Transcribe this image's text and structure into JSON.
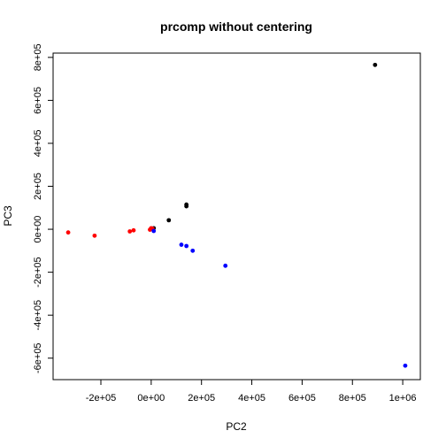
{
  "chart_data": {
    "type": "scatter",
    "title": "prcomp without centering",
    "xlabel": "PC2",
    "ylabel": "PC3",
    "xlim": [
      -390000,
      1070000
    ],
    "ylim": [
      -700000,
      820000
    ],
    "x_ticks": [
      {
        "value": -200000,
        "label": "-2e+05"
      },
      {
        "value": 0,
        "label": "0e+00"
      },
      {
        "value": 200000,
        "label": "2e+05"
      },
      {
        "value": 400000,
        "label": "4e+05"
      },
      {
        "value": 600000,
        "label": "6e+05"
      },
      {
        "value": 800000,
        "label": "8e+05"
      },
      {
        "value": 1000000,
        "label": "1e+06"
      }
    ],
    "y_ticks": [
      {
        "value": -600000,
        "label": "-6e+05"
      },
      {
        "value": -400000,
        "label": "-4e+05"
      },
      {
        "value": -200000,
        "label": "-2e+05"
      },
      {
        "value": 0,
        "label": "0e+00"
      },
      {
        "value": 200000,
        "label": "2e+05"
      },
      {
        "value": 400000,
        "label": "4e+05"
      },
      {
        "value": 600000,
        "label": "6e+05"
      },
      {
        "value": 800000,
        "label": "8e+05"
      }
    ],
    "grid": false,
    "series": [
      {
        "color": "#000000",
        "points": [
          {
            "x": 890000,
            "y": 765000
          },
          {
            "x": 140000,
            "y": 115000
          },
          {
            "x": 140000,
            "y": 107000
          },
          {
            "x": 70000,
            "y": 42000
          },
          {
            "x": 10000,
            "y": 5000
          }
        ]
      },
      {
        "color": "#ff0000",
        "points": [
          {
            "x": -330000,
            "y": -15000
          },
          {
            "x": -225000,
            "y": -30000
          },
          {
            "x": -85000,
            "y": -10000
          },
          {
            "x": -70000,
            "y": -5000
          },
          {
            "x": -5000,
            "y": -2000
          },
          {
            "x": 5000,
            "y": 3000
          },
          {
            "x": 0,
            "y": 5000
          }
        ]
      },
      {
        "color": "#0000ff",
        "points": [
          {
            "x": 120000,
            "y": -72000
          },
          {
            "x": 140000,
            "y": -78000
          },
          {
            "x": 165000,
            "y": -100000
          },
          {
            "x": 295000,
            "y": -170000
          },
          {
            "x": 1010000,
            "y": -635000
          },
          {
            "x": 10000,
            "y": -8000
          }
        ]
      }
    ]
  }
}
